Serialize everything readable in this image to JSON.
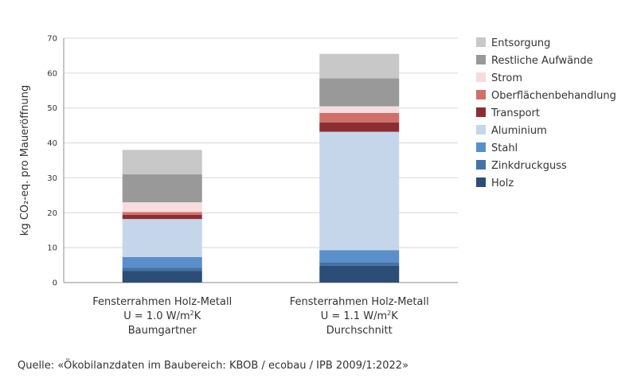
{
  "chart_data": {
    "type": "bar",
    "stacked": true,
    "title": "",
    "ylabel": "kg CO₂-eq. pro Maueröffnung",
    "ylim": [
      0,
      70
    ],
    "yticks": [
      "0",
      "10",
      "20",
      "30",
      "40",
      "50",
      "60",
      "70"
    ],
    "grid": true,
    "legend_position": "right",
    "categories": [
      {
        "lines": [
          "Fensterrahmen Holz-Metall",
          "U = 1.0 W/m²K",
          "Baumgartner"
        ],
        "line2_prefix": "U = 1.0 W/m",
        "line2_sup": "2",
        "line2_suffix": "K"
      },
      {
        "lines": [
          "Fensterrahmen Holz-Metall",
          "U = 1.1 W/m²K",
          "Durchschnitt"
        ],
        "line2_prefix": "U = 1.1 W/m",
        "line2_sup": "2",
        "line2_suffix": "K"
      }
    ],
    "series": [
      {
        "name": "Holz",
        "color": "#2c4d75",
        "values": [
          3.3,
          4.8
        ]
      },
      {
        "name": "Zinkdruckguss",
        "color": "#4472a4",
        "values": [
          1.0,
          0.9
        ]
      },
      {
        "name": "Stahl",
        "color": "#5b8fc9",
        "values": [
          3.0,
          3.6
        ]
      },
      {
        "name": "Aluminium",
        "color": "#c6d6ea",
        "values": [
          10.9,
          33.9
        ]
      },
      {
        "name": "Transport",
        "color": "#8b2e33",
        "values": [
          1.2,
          2.7
        ]
      },
      {
        "name": "Oberflächenbehandlung",
        "color": "#d0706a",
        "values": [
          0.8,
          2.7
        ]
      },
      {
        "name": "Strom",
        "color": "#f6dcdc",
        "values": [
          2.8,
          1.9
        ]
      },
      {
        "name": "Restliche Aufwände",
        "color": "#999999",
        "values": [
          8.0,
          8.0
        ]
      },
      {
        "name": "Entsorgung",
        "color": "#c8c8c8",
        "values": [
          7.0,
          7.0
        ]
      }
    ]
  },
  "source": "Quelle: «Ökobilanzdaten im Baubereich: KBOB / ecobau / IPB 2009/1:2022»"
}
